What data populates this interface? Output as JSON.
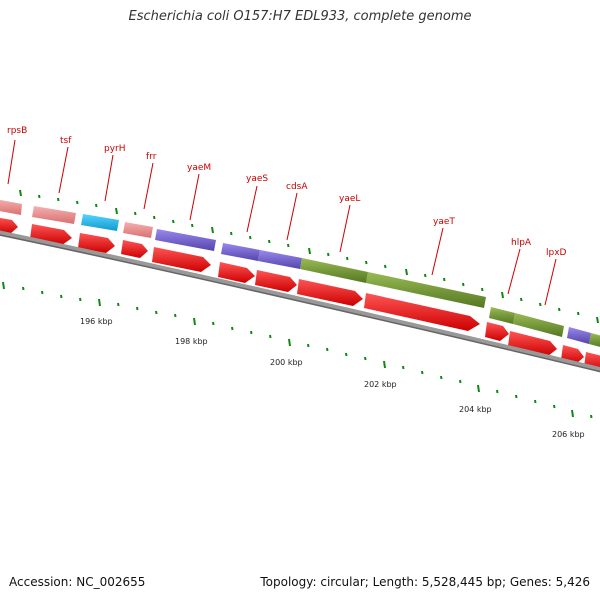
{
  "title": "Escherichia coli O157:H7 EDL933, complete genome",
  "footer": {
    "accession": "Accession: NC_002655",
    "stats": "Topology: circular; Length: 5,528,445 bp; Genes: 5,426"
  },
  "colors": {
    "pink": "#e88c8c",
    "cyan": "#22b8ee",
    "purple": "#7766cc",
    "olive": "#779933",
    "red_arrow": "#ee0000",
    "label_red": "#cc0000",
    "tick_green": "#118811",
    "backbone": "#777777"
  },
  "gene_labels": [
    "rpsB",
    "tsf",
    "pyrH",
    "frr",
    "yaeM",
    "yaeS",
    "cdsA",
    "yaeL",
    "yaeT",
    "hlpA",
    "lpxD"
  ],
  "kbp_labels": [
    "196 kbp",
    "198 kbp",
    "200 kbp",
    "202 kbp",
    "204 kbp",
    "206 kbp"
  ],
  "features": [
    {
      "color": "pink"
    },
    {
      "color": "pink"
    },
    {
      "color": "cyan"
    },
    {
      "color": "pink"
    },
    {
      "color": "purple"
    },
    {
      "color": "purple"
    },
    {
      "color": "purple"
    },
    {
      "color": "olive"
    },
    {
      "color": "olive"
    },
    {
      "color": "olive"
    },
    {
      "color": "olive"
    },
    {
      "color": "purple"
    },
    {
      "color": "olive"
    }
  ]
}
